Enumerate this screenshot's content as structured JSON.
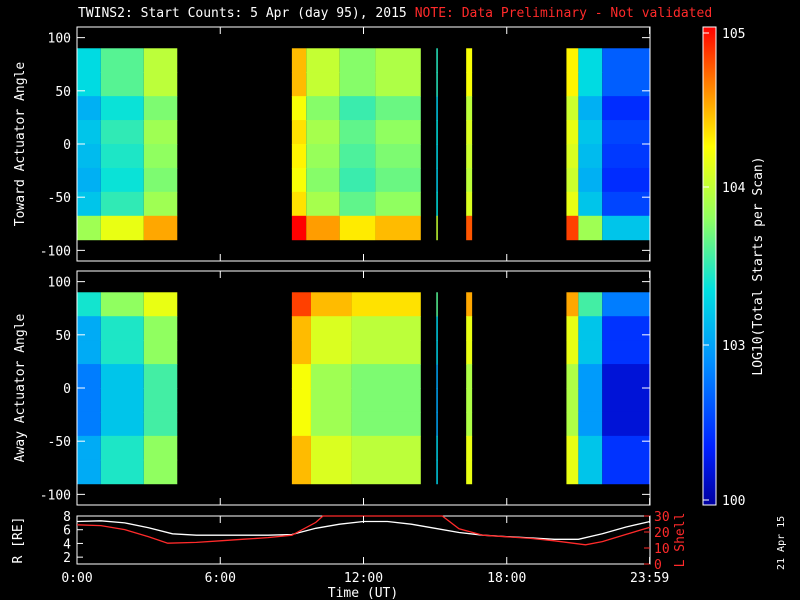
{
  "header": {
    "title": "TWINS2: Start Counts:  5 Apr (day  95), 2015",
    "note": "NOTE: Data Preliminary - Not validated"
  },
  "footer": {
    "date_stamp": "21 Apr 15"
  },
  "colorbar": {
    "label": "LOG10(Total Starts per Scan)",
    "ticks": [
      "10^5",
      "10^4",
      "10^3",
      "100"
    ]
  },
  "chart_data": [
    {
      "type": "heatmap",
      "title": "",
      "ylabel": "Toward Actuator Angle",
      "ylim": [
        -110,
        110
      ],
      "yticks": [
        100,
        50,
        0,
        -50,
        -100
      ],
      "x": [
        {
          "t0": 0.0,
          "t1": 1.0,
          "level": 0.4
        },
        {
          "t0": 1.0,
          "t1": 2.8,
          "level": 0.5
        },
        {
          "t0": 2.8,
          "t1": 4.2,
          "level": 0.62
        },
        {
          "t0": 9.0,
          "t1": 9.6,
          "level": 0.78
        },
        {
          "t0": 9.6,
          "t1": 11.0,
          "level": 0.63
        },
        {
          "t0": 11.0,
          "t1": 12.5,
          "level": 0.55
        },
        {
          "t0": 12.5,
          "t1": 14.4,
          "level": 0.6
        },
        {
          "t0": 15.05,
          "t1": 15.1,
          "level": 0.45
        },
        {
          "t0": 16.3,
          "t1": 16.55,
          "level": 0.7
        },
        {
          "t0": 20.5,
          "t1": 21.0,
          "level": 0.72
        },
        {
          "t0": 21.0,
          "t1": 22.0,
          "level": 0.4
        },
        {
          "t0": 22.0,
          "t1": 24.0,
          "level": 0.18
        }
      ]
    },
    {
      "type": "heatmap",
      "title": "",
      "ylabel": "Away Actuator Angle",
      "ylim": [
        -110,
        110
      ],
      "yticks": [
        100,
        50,
        0,
        -50,
        -100
      ],
      "x": [
        {
          "t0": 0.0,
          "t1": 1.0,
          "level": 0.35
        },
        {
          "t0": 1.0,
          "t1": 2.8,
          "level": 0.48
        },
        {
          "t0": 2.8,
          "t1": 4.2,
          "level": 0.6
        },
        {
          "t0": 9.0,
          "t1": 9.8,
          "level": 0.82
        },
        {
          "t0": 9.8,
          "t1": 11.5,
          "level": 0.7
        },
        {
          "t0": 11.5,
          "t1": 14.4,
          "level": 0.66
        },
        {
          "t0": 15.05,
          "t1": 15.1,
          "level": 0.42
        },
        {
          "t0": 16.3,
          "t1": 16.55,
          "level": 0.72
        },
        {
          "t0": 20.5,
          "t1": 21.0,
          "level": 0.72
        },
        {
          "t0": 21.0,
          "t1": 22.0,
          "level": 0.4
        },
        {
          "t0": 22.0,
          "t1": 24.0,
          "level": 0.15
        }
      ]
    },
    {
      "type": "line",
      "title": "",
      "xlabel": "Time (UT)",
      "ylabel": "R [RE]",
      "ylabel_right": "L Shell",
      "ylim": [
        1,
        8
      ],
      "ylim_right": [
        0,
        30
      ],
      "yticks": [
        8,
        6,
        4,
        2
      ],
      "yticks_right": [
        30,
        20,
        10,
        0
      ],
      "xticks": [
        "0:00",
        "6:00",
        "12:00",
        "18:00",
        "23:59"
      ],
      "series": [
        {
          "name": "R",
          "color": "#ffffff",
          "x": [
            0,
            1,
            2,
            3,
            4,
            5,
            6,
            7,
            8,
            9,
            10,
            11,
            12,
            13,
            14,
            15,
            16,
            17,
            18,
            19,
            20,
            21,
            22,
            23,
            24
          ],
          "y": [
            7.2,
            7.3,
            7.0,
            6.3,
            5.4,
            5.2,
            5.2,
            5.2,
            5.2,
            5.3,
            6.2,
            6.8,
            7.2,
            7.2,
            6.8,
            6.2,
            5.6,
            5.2,
            5.0,
            4.8,
            4.6,
            4.6,
            5.4,
            6.4,
            7.2
          ]
        },
        {
          "name": "L Shell",
          "color": "#ff2a2a",
          "x": [
            0,
            1,
            2,
            3,
            3.8,
            5,
            6,
            7,
            8,
            9,
            10.0,
            10.3,
            15.3,
            16,
            17,
            18,
            19,
            20,
            21.3,
            22,
            23,
            24
          ],
          "y": [
            24.5,
            24.0,
            21.5,
            17.0,
            13.0,
            13.5,
            14.5,
            15.5,
            16.5,
            18.0,
            26.0,
            30.0,
            30.0,
            22.0,
            18.0,
            17.0,
            16.0,
            14.5,
            12.0,
            14.0,
            18.5,
            23.0
          ]
        }
      ]
    }
  ]
}
